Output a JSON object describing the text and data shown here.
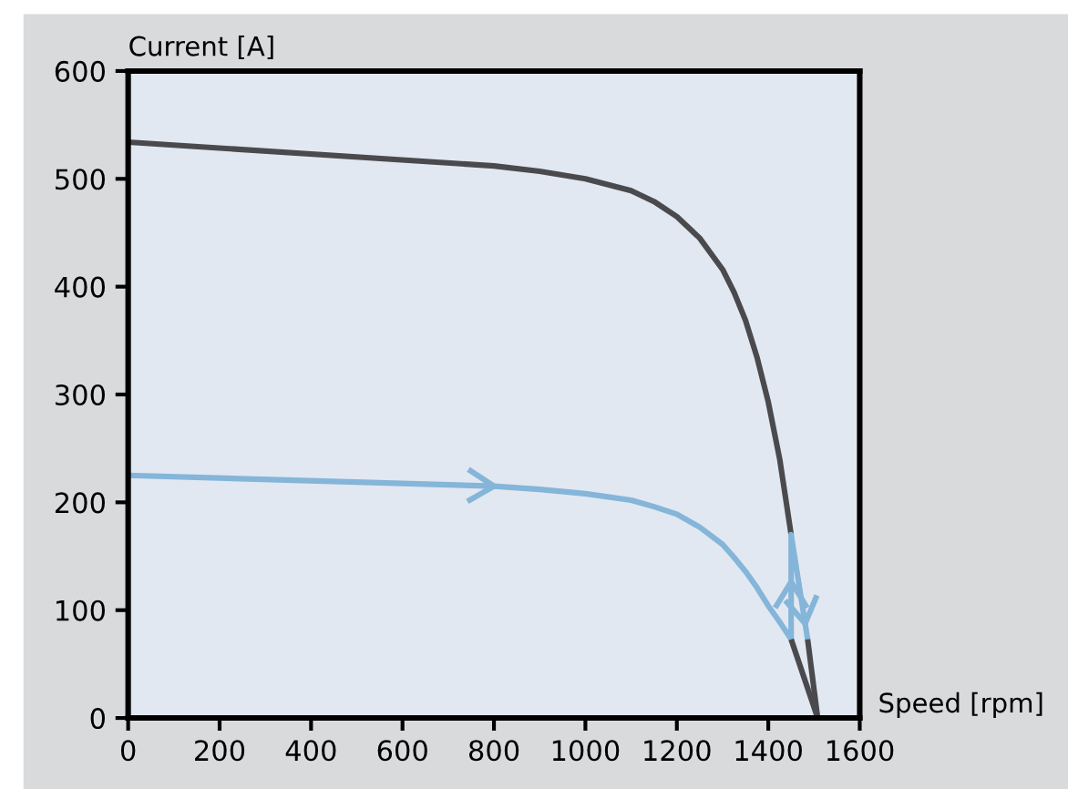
{
  "chart_data": {
    "type": "line",
    "xlabel": "Speed [rpm]",
    "ylabel": "Current [A]",
    "series": [
      {
        "color": "#4a4a4e",
        "x": [
          0,
          800,
          900,
          1000,
          1100,
          1150,
          1200,
          1250,
          1300,
          1325,
          1350,
          1375,
          1400,
          1425,
          1450
        ],
        "values": [
          534,
          512,
          507,
          500,
          489,
          479,
          465,
          445,
          416,
          395,
          369,
          335,
          293,
          240,
          170
        ]
      },
      {
        "color": "#85b5d9",
        "x": [
          0,
          800,
          900,
          1000,
          1100,
          1150,
          1200,
          1250,
          1300,
          1325,
          1350,
          1375,
          1400,
          1425,
          1450,
          1450,
          1486
        ],
        "values": [
          225,
          215,
          212,
          208,
          202,
          196,
          189,
          177,
          161,
          149,
          136,
          121,
          104,
          89,
          73,
          170,
          73
        ]
      },
      {
        "color": "#4a4a4e",
        "x": [
          1486,
          1508
        ],
        "values": [
          73,
          0
        ]
      },
      {
        "color": "#4a4a4e",
        "x": [
          1450,
          1508
        ],
        "values": [
          73,
          0
        ]
      }
    ],
    "xlim": [
      0,
      1600
    ],
    "xticks": [
      0,
      200,
      400,
      600,
      800,
      1000,
      1200,
      1400,
      1600
    ],
    "ylim": [
      0,
      600
    ],
    "yticks": [
      0,
      100,
      200,
      300,
      400,
      500,
      600
    ],
    "grid": false
  }
}
